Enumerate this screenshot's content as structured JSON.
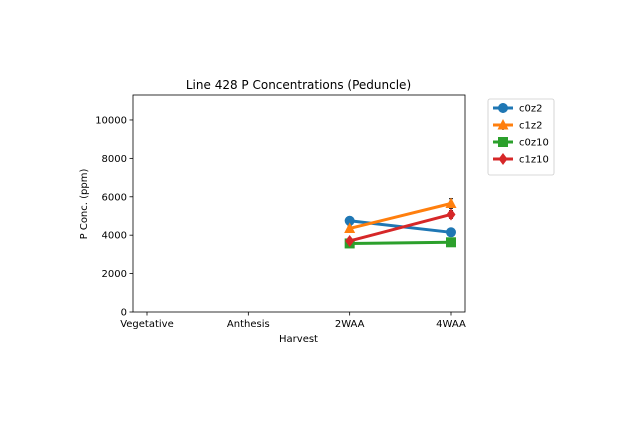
{
  "chart_data": {
    "type": "line",
    "title": "Line 428 P Concentrations (Peduncle)",
    "xlabel": "Harvest",
    "ylabel": "P Conc. (ppm)",
    "categories": [
      "Vegetative",
      "Anthesis",
      "2WAA",
      "4WAA"
    ],
    "ylim": [
      0,
      11300
    ],
    "yticks": [
      0,
      2000,
      4000,
      6000,
      8000,
      10000
    ],
    "grid": false,
    "legend_position": "outside-top-right",
    "series": [
      {
        "name": "c0z2",
        "color": "#1f77b4",
        "marker": "circle",
        "values": [
          null,
          null,
          4750,
          4150
        ],
        "errors": [
          null,
          null,
          120,
          150
        ]
      },
      {
        "name": "c1z2",
        "color": "#ff7f0e",
        "marker": "triangle",
        "values": [
          null,
          null,
          4350,
          5650
        ],
        "errors": [
          null,
          null,
          130,
          250
        ]
      },
      {
        "name": "c0z10",
        "color": "#2ca02c",
        "marker": "square",
        "values": [
          null,
          null,
          3570,
          3630
        ],
        "errors": [
          null,
          null,
          80,
          70
        ]
      },
      {
        "name": "c1z10",
        "color": "#d62728",
        "marker": "diamond",
        "values": [
          null,
          null,
          3700,
          5080
        ],
        "errors": [
          null,
          null,
          150,
          200
        ]
      }
    ]
  }
}
